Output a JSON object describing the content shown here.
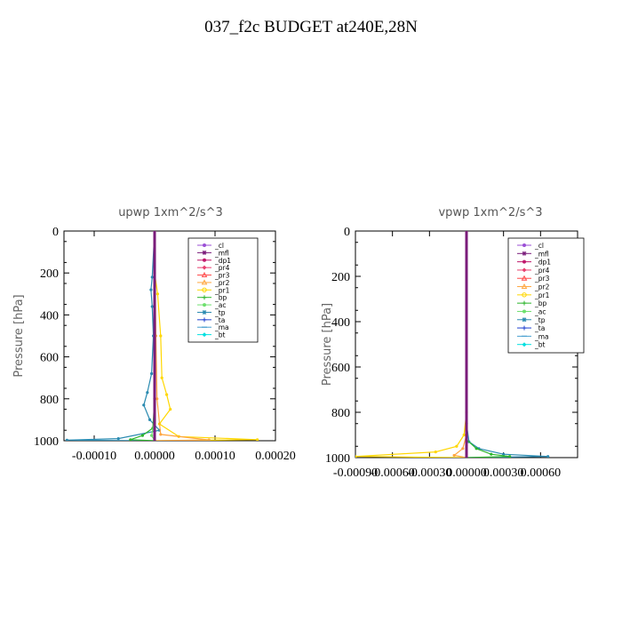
{
  "title": "037_f2c  BUDGET at240E,28N",
  "legend_entries": [
    {
      "name": "_cl",
      "color": "#9b4fd6",
      "marker": "dot"
    },
    {
      "name": "_mfl",
      "color": "#7a1c7a",
      "marker": "star"
    },
    {
      "name": "_dp1",
      "color": "#c0186b",
      "marker": "dot"
    },
    {
      "name": "_pr4",
      "color": "#e84070",
      "marker": "diamond"
    },
    {
      "name": "_pr3",
      "color": "#ff4a4a",
      "marker": "triangle"
    },
    {
      "name": "_pr2",
      "color": "#ffa640",
      "marker": "triangle"
    },
    {
      "name": "_pr1",
      "color": "#ffd700",
      "marker": "circle"
    },
    {
      "name": "_bp",
      "color": "#2bb52b",
      "marker": "plus"
    },
    {
      "name": "_ac",
      "color": "#6ee06e",
      "marker": "dot"
    },
    {
      "name": "_tp",
      "color": "#2a8ab0",
      "marker": "star"
    },
    {
      "name": "_ta",
      "color": "#2040d0",
      "marker": "plus"
    },
    {
      "name": "_ma",
      "color": "#4aa0d0",
      "marker": "dash"
    },
    {
      "name": "_bt",
      "color": "#00e0e0",
      "marker": "diamond"
    }
  ],
  "chart_data": [
    {
      "type": "line",
      "title": "upwp   1xm^2/s^3",
      "ylabel": "Pressure [hPa]",
      "xlabel": "",
      "xlim": [
        -0.00015,
        0.0002
      ],
      "ylim": [
        1000,
        0
      ],
      "xticks": [
        -0.0001,
        0.0,
        0.0001,
        0.0002
      ],
      "xtick_labels": [
        "-0.00010",
        "0.00000",
        "0.00010",
        "0.00020"
      ],
      "yticks": [
        0,
        200,
        400,
        600,
        800,
        1000
      ],
      "ytick_labels": [
        "0",
        "200",
        "400",
        "600",
        "800",
        "1000"
      ],
      "series": [
        {
          "name": "_pr1",
          "points": [
            [
              0,
              0
            ],
            [
              0,
              200
            ],
            [
              5e-06,
              300
            ],
            [
              1e-05,
              500
            ],
            [
              1.2e-05,
              700
            ],
            [
              2e-05,
              780
            ],
            [
              2.6e-05,
              850
            ],
            [
              8e-06,
              920
            ],
            [
              4e-05,
              980
            ],
            [
              0.00017,
              995
            ],
            [
              0.0,
              1000
            ]
          ]
        },
        {
          "name": "_tp",
          "points": [
            [
              0,
              0
            ],
            [
              -4e-06,
              220
            ],
            [
              -6e-06,
              280
            ],
            [
              -4e-06,
              360
            ],
            [
              -2e-06,
              500
            ],
            [
              -5e-06,
              680
            ],
            [
              -1.2e-05,
              770
            ],
            [
              -1.8e-05,
              830
            ],
            [
              -8e-06,
              900
            ],
            [
              8e-06,
              950
            ],
            [
              -6e-05,
              990
            ],
            [
              -0.000145,
              997
            ],
            [
              0,
              1000
            ]
          ]
        },
        {
          "name": "_bp",
          "points": [
            [
              0,
              0
            ],
            [
              0,
              800
            ],
            [
              -3e-06,
              940
            ],
            [
              -2e-05,
              975
            ],
            [
              -4e-05,
              995
            ],
            [
              0,
              1000
            ]
          ]
        },
        {
          "name": "_pr2",
          "points": [
            [
              0,
              0
            ],
            [
              2e-06,
              500
            ],
            [
              4e-06,
              800
            ],
            [
              1e-05,
              970
            ],
            [
              9e-05,
              996
            ],
            [
              0,
              1000
            ]
          ]
        },
        {
          "name": "_ac",
          "points": [
            [
              0,
              0
            ],
            [
              0,
              900
            ],
            [
              -5e-06,
              975
            ],
            [
              0,
              1000
            ]
          ]
        },
        {
          "name": "_dp1",
          "points": [
            [
              0,
              0
            ],
            [
              0,
              1000
            ]
          ]
        },
        {
          "name": "_mfl",
          "points": [
            [
              0,
              0
            ],
            [
              0,
              1000
            ]
          ]
        }
      ]
    },
    {
      "type": "line",
      "title": "vpwp   1xm^2/s^3",
      "ylabel": "Pressure [hPa]",
      "xlabel": "",
      "xlim": [
        -0.0009,
        0.0009
      ],
      "ylim": [
        1000,
        0
      ],
      "xticks": [
        -0.0009,
        -0.0006,
        -0.0003,
        0.0,
        0.0003,
        0.0006
      ],
      "xtick_labels": [
        "-0.00090",
        "-0.00060",
        "-0.00030",
        "0.00000",
        "0.00030",
        "0.00060"
      ],
      "yticks": [
        0,
        200,
        400,
        600,
        800,
        1000
      ],
      "ytick_labels": [
        "0",
        "200",
        "400",
        "600",
        "800",
        "1000"
      ],
      "series": [
        {
          "name": "_pr1",
          "points": [
            [
              0,
              0
            ],
            [
              0,
              800
            ],
            [
              -2e-05,
              900
            ],
            [
              -8e-05,
              950
            ],
            [
              -0.00025,
              975
            ],
            [
              -0.0009,
              995
            ],
            [
              0,
              1000
            ]
          ]
        },
        {
          "name": "_tp",
          "points": [
            [
              0,
              0
            ],
            [
              0,
              850
            ],
            [
              2e-05,
              930
            ],
            [
              0.0001,
              960
            ],
            [
              0.0003,
              985
            ],
            [
              0.00066,
              995
            ],
            [
              0,
              1000
            ]
          ]
        },
        {
          "name": "_bp",
          "points": [
            [
              0,
              0
            ],
            [
              0,
              920
            ],
            [
              8e-05,
              960
            ],
            [
              0.0002,
              985
            ],
            [
              0.00035,
              995
            ],
            [
              0,
              1000
            ]
          ]
        },
        {
          "name": "_pr2",
          "points": [
            [
              0,
              0
            ],
            [
              0,
              900
            ],
            [
              -3e-05,
              960
            ],
            [
              -0.0001,
              990
            ],
            [
              0,
              1000
            ]
          ]
        },
        {
          "name": "_dp1",
          "points": [
            [
              0,
              0
            ],
            [
              0,
              1000
            ]
          ]
        },
        {
          "name": "_mfl",
          "points": [
            [
              0,
              0
            ],
            [
              0,
              1000
            ]
          ]
        }
      ]
    }
  ]
}
